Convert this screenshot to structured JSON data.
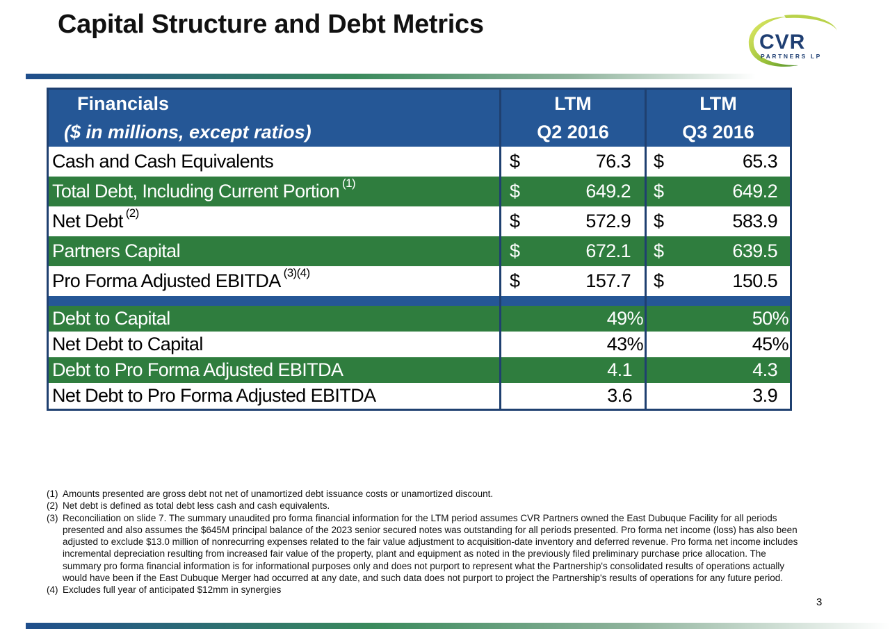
{
  "title": "Capital Structure and Debt Metrics",
  "logo": {
    "word": "CVR",
    "sub": "PARTNERS LP"
  },
  "table": {
    "header": {
      "label_line1": "Financials",
      "label_line2": "($ in millions, except ratios)",
      "col1_line1": "LTM",
      "col1_line2": "Q2 2016",
      "col2_line1": "LTM",
      "col2_line2": "Q3 2016"
    },
    "currency": "$",
    "rows": [
      {
        "label": "Cash and Cash Equivalents",
        "note": "",
        "q2": "76.3",
        "q3": "65.3"
      },
      {
        "label": "Total Debt, Including Current Portion",
        "note": "(1)",
        "q2": "649.2",
        "q3": "649.2"
      },
      {
        "label": "Net Debt",
        "note": "(2)",
        "q2": "572.9",
        "q3": "583.9"
      },
      {
        "label": "Partners Capital",
        "note": "",
        "q2": "672.1",
        "q3": "639.5"
      },
      {
        "label": "Pro Forma Adjusted EBITDA",
        "note": "(3)(4)",
        "q2": "157.7",
        "q3": "150.5"
      }
    ],
    "ratios": [
      {
        "label": "Debt to Capital",
        "q2": "49%",
        "q3": "50%"
      },
      {
        "label": "Net Debt to Capital",
        "q2": "43%",
        "q3": "45%"
      },
      {
        "label": "Debt to Pro Forma Adjusted EBITDA",
        "q2": "4.1",
        "q3": "4.3"
      },
      {
        "label": "Net Debt to Pro Forma Adjusted EBITDA",
        "q2": "3.6",
        "q3": "3.9"
      }
    ]
  },
  "footnotes": [
    {
      "num": "(1)",
      "text": "Amounts presented are gross debt not net of unamortized debt issuance costs or unamortized discount."
    },
    {
      "num": "(2)",
      "text": "Net debt is defined as total debt less cash and cash equivalents."
    },
    {
      "num": "(3)",
      "text": "Reconciliation on slide 7. The summary unaudited pro forma financial information for the LTM period assumes CVR Partners owned the East Dubuque Facility for all periods presented and also assumes the $645M principal balance of the 2023 senior secured notes was outstanding for all periods presented. Pro forma net income (loss) has also been adjusted to exclude $13.0 million of nonrecurring expenses related to the fair value adjustment to acquisition-date inventory and deferred revenue. Pro forma net income includes incremental depreciation resulting from increased fair value of the property, plant and equipment as noted in the previously filed preliminary purchase price allocation. The summary pro forma financial information is for informational purposes only and does not purport to represent what the Partnership's consolidated results of operations actually would have been if the East Dubuque Merger had occurred at any date, and such data does not purport to project the Partnership's results of operations for any future period."
    },
    {
      "num": "(4)",
      "text": "Excludes full year of anticipated $12mm in synergies"
    }
  ],
  "page_number": "3"
}
